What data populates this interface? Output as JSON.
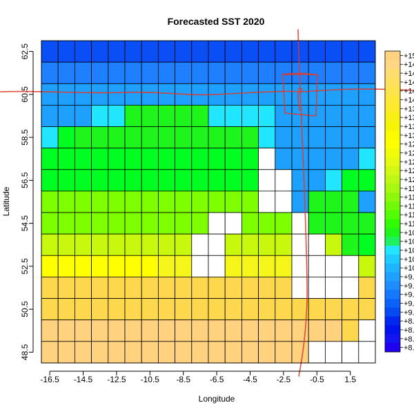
{
  "chart_data": {
    "type": "heatmap",
    "title": "Forecasted SST 2020",
    "xlabel": "Longitude",
    "ylabel": "Latitude",
    "x_ticks": [
      "-16.5",
      "-14.5",
      "-12.5",
      "-10.5",
      "-8.5",
      "-6.5",
      "-4.5",
      "-2.5",
      "-0.5",
      "1.5"
    ],
    "y_ticks": [
      "48.5",
      "50.5",
      "52.5",
      "54.5",
      "56.5",
      "58.5",
      "60.5",
      "62.5"
    ],
    "x_centers": [
      -16.5,
      -15.5,
      -14.5,
      -13.5,
      -12.5,
      -11.5,
      -10.5,
      -9.5,
      -8.5,
      -7.5,
      -6.5,
      -5.5,
      -4.5,
      -3.5,
      -2.5,
      -1.5,
      -0.5,
      0.5,
      1.5,
      2.5
    ],
    "y_centers": [
      62.5,
      61.5,
      60.5,
      59.5,
      58.5,
      57.5,
      56.5,
      55.5,
      54.5,
      53.5,
      52.5,
      51.5,
      50.5,
      49.5,
      48.5
    ],
    "color_keys": [
      "P",
      "B",
      "H",
      "G",
      "A",
      "Y",
      "L",
      "K",
      "C",
      "S",
      "F",
      "D",
      "M",
      "N",
      "V",
      "_"
    ],
    "colors": {
      "P": "#ffd280",
      "B": "#fdd84f",
      "H": "#fce028",
      "G": "#f5f51a",
      "A": "#ffff00",
      "Y": "#e6fa0f",
      "L": "#c8f80e",
      "K": "#aef80c",
      "C": "#7eff00",
      "S": "#1ef51a",
      "F": "#00ff20",
      "D": "#20e6ff",
      "M": "#1ea0ff",
      "N": "#1e80ff",
      "V": "#0a4ef5",
      "_": "#ffffff"
    },
    "grid": [
      "VVVVVVVVVVVVVVVVVVVV",
      "NNNNNNNNNNNNNNNNNNNN",
      "MMMMMMMMMMMMMMMMMMMM",
      "MMMDDSSSSSDDDDMMMMMM",
      "DFSSSSSSSSSSSDMMMMMM",
      "FFFFFFFFFFFFF_MMMMMD",
      "FFFFFFFFFFFFF__MMDFF",
      "CCCCCCCCCCCCC__MSSSM",
      "CCCCCCCCCC__CCC_SSSS",
      "LLLLLLLLL__LLLL__LSF",
      "AAAAAAAGG__GGGG____L",
      "BBBBBBBBBBBBBBB____B",
      "BBBBBBBBBBBBBBBBBBBB",
      "PPPPPPPPPPPPPPPPPPB_",
      "PPPPPPPPPPPPPPPP____"
    ],
    "legend": {
      "labels": [
        "+15",
        "+14",
        "+14",
        "+14",
        "+14",
        "+14",
        "+13",
        "+13",
        "+13",
        "+13",
        "+12",
        "+12",
        "+12",
        "+12",
        "+12",
        "+11",
        "+11",
        "+11",
        "+11",
        "+11",
        "+10",
        "+10",
        "+10",
        "+10",
        "+10",
        "+9.",
        "+9.",
        "+9.",
        "+9.",
        "+9.",
        "+8.",
        "+8.",
        "+8.",
        "+8."
      ],
      "colors": [
        "#ffd280",
        "#ffd784",
        "#fddc70",
        "#fde060",
        "#fde44c",
        "#fde838",
        "#fceb26",
        "#f9f013",
        "#f7f507",
        "#fcfb00",
        "#ffff00",
        "#f2fc08",
        "#e4fa10",
        "#d2f814",
        "#bdf714",
        "#a8f812",
        "#8ef80c",
        "#70fa08",
        "#52fc04",
        "#32fc04",
        "#1ef51a",
        "#1ef060",
        "#20e6ff",
        "#20ccff",
        "#1eb4ff",
        "#1ea0ff",
        "#1e8cff",
        "#1478ff",
        "#0a62fa",
        "#064af5",
        "#0228f0",
        "#0014f0",
        "#1414f0",
        "#2000f0"
      ]
    },
    "overlay": {
      "color": "#e03a2a"
    }
  }
}
